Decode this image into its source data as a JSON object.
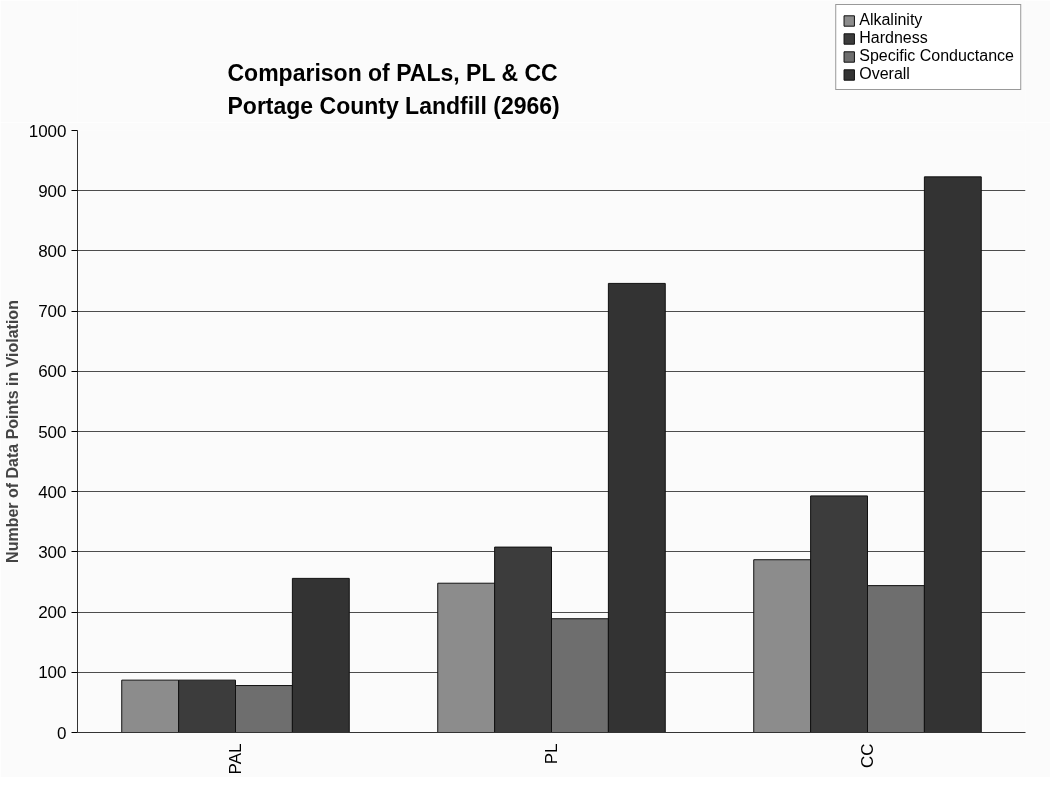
{
  "chart_data": {
    "type": "bar",
    "title": "Comparison of PALs, PL & CC\nPortage County Landfill (2966)",
    "ylabel": "Number of Data Points in Violation",
    "categories": [
      "PAL",
      "PL",
      "CC"
    ],
    "series": [
      {
        "name": "Alkalinity",
        "color": "#8c8c8c",
        "values": [
          87,
          248,
          287
        ]
      },
      {
        "name": "Hardness",
        "color": "#3c3c3c",
        "values": [
          87,
          308,
          393
        ]
      },
      {
        "name": "Specific Conductance",
        "color": "#6e6e6e",
        "values": [
          78,
          189,
          244
        ]
      },
      {
        "name": "Overall",
        "color": "#333333",
        "values": [
          256,
          746,
          923
        ]
      }
    ],
    "ylim": [
      0,
      1000
    ],
    "yticks": [
      0,
      100,
      200,
      300,
      400,
      500,
      600,
      700,
      800,
      900,
      1000
    ],
    "grid": "y",
    "legend": "top right"
  }
}
